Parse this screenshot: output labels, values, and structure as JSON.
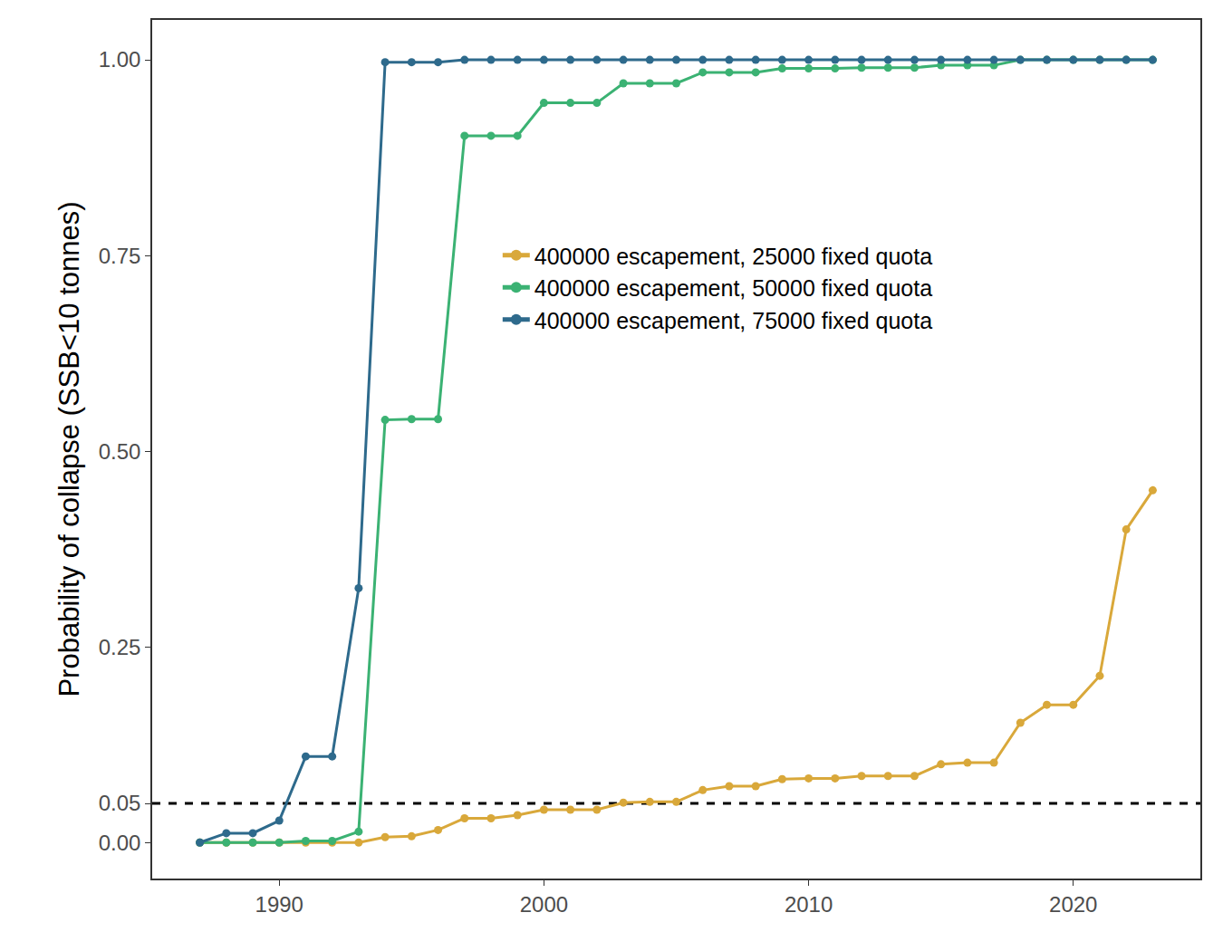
{
  "chart_data": {
    "type": "line",
    "y_label": "Probability of collapse (SSB<10 tonnes)",
    "x": [
      1987,
      1988,
      1989,
      1990,
      1991,
      1992,
      1993,
      1994,
      1995,
      1996,
      1997,
      1998,
      1999,
      2000,
      2001,
      2002,
      2003,
      2004,
      2005,
      2006,
      2007,
      2008,
      2009,
      2010,
      2011,
      2012,
      2013,
      2014,
      2015,
      2016,
      2017,
      2018,
      2019,
      2020,
      2021,
      2022,
      2023
    ],
    "series": [
      {
        "name": "400000 escapement, 25000 fixed quota",
        "color": "#d9a83a",
        "marker": "circle",
        "line_style": "solid",
        "values": [
          0,
          0,
          0,
          0,
          0,
          0,
          0,
          0.007,
          0.008,
          0.016,
          0.031,
          0.031,
          0.035,
          0.042,
          0.042,
          0.042,
          0.051,
          0.052,
          0.052,
          0.067,
          0.072,
          0.072,
          0.081,
          0.082,
          0.082,
          0.085,
          0.085,
          0.085,
          0.1,
          0.102,
          0.102,
          0.153,
          0.176,
          0.176,
          0.213,
          0.4,
          0.45
        ]
      },
      {
        "name": "400000 escapement, 50000 fixed quota",
        "color": "#3bb273",
        "marker": "circle",
        "line_style": "solid",
        "values": [
          0,
          0,
          0,
          0,
          0.002,
          0.002,
          0.014,
          0.54,
          0.541,
          0.541,
          0.903,
          0.903,
          0.903,
          0.945,
          0.945,
          0.945,
          0.97,
          0.97,
          0.97,
          0.984,
          0.984,
          0.984,
          0.989,
          0.989,
          0.989,
          0.99,
          0.99,
          0.99,
          0.993,
          0.993,
          0.993,
          1,
          1,
          1,
          1,
          1,
          1
        ]
      },
      {
        "name": "400000 escapement, 75000 fixed quota",
        "color": "#2e6a8c",
        "marker": "circle",
        "line_style": "solid",
        "values": [
          0,
          0.012,
          0.012,
          0.028,
          0.11,
          0.11,
          0.325,
          0.997,
          0.997,
          0.997,
          1,
          1,
          1,
          1,
          1,
          1,
          1,
          1,
          1,
          1,
          1,
          1,
          1,
          1,
          1,
          1,
          1,
          1,
          1,
          1,
          1,
          1,
          1,
          1,
          1,
          1,
          1
        ]
      }
    ],
    "reference_lines": [
      {
        "y": 0.05,
        "color": "#000000",
        "line_style": "dashed"
      }
    ],
    "xlim": [
      1985.2,
      2024.8
    ],
    "xticks": [
      1990,
      2000,
      2010,
      2020
    ],
    "ylim": [
      -0.046,
      1.051
    ],
    "yticks": [
      {
        "value": 0,
        "label": "0.00"
      },
      {
        "value": 0.05,
        "label": "0.05"
      },
      {
        "value": 0.25,
        "label": "0.25"
      },
      {
        "value": 0.5,
        "label": "0.50"
      },
      {
        "value": 0.75,
        "label": "0.75"
      },
      {
        "value": 1,
        "label": "1.00"
      }
    ],
    "grid": false,
    "legend": "right"
  }
}
